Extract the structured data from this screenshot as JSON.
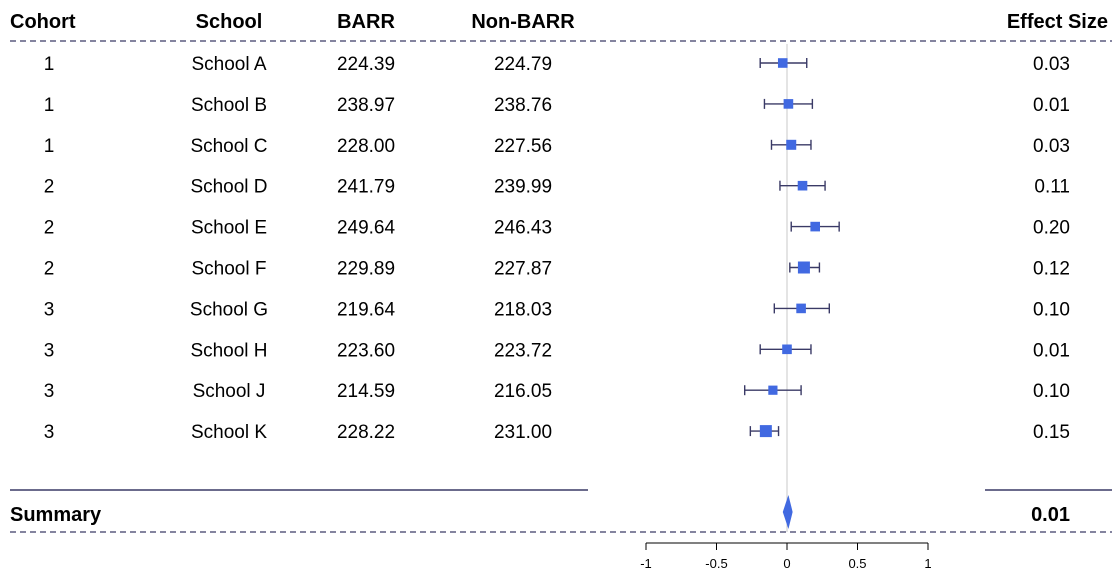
{
  "chart_data": {
    "type": "forest",
    "columns": {
      "cohort": "Cohort",
      "school": "School",
      "barr": "BARR",
      "nonbarr": "Non-BARR",
      "effect": "Effect Size"
    },
    "rows": [
      {
        "cohort": "1",
        "school": "School A",
        "barr": "224.39",
        "nonbarr": "224.79",
        "es": "0.03",
        "est": -0.03,
        "lo": -0.19,
        "hi": 0.14,
        "w": 0.45
      },
      {
        "cohort": "1",
        "school": "School B",
        "barr": "238.97",
        "nonbarr": "238.76",
        "es": "0.01",
        "est": 0.01,
        "lo": -0.16,
        "hi": 0.18,
        "w": 0.45
      },
      {
        "cohort": "1",
        "school": "School C",
        "barr": "228.00",
        "nonbarr": "227.56",
        "es": "0.03",
        "est": 0.03,
        "lo": -0.11,
        "hi": 0.17,
        "w": 0.5
      },
      {
        "cohort": "2",
        "school": "School D",
        "barr": "241.79",
        "nonbarr": "239.99",
        "es": "0.11",
        "est": 0.11,
        "lo": -0.05,
        "hi": 0.27,
        "w": 0.45
      },
      {
        "cohort": "2",
        "school": "School E",
        "barr": "249.64",
        "nonbarr": "246.43",
        "es": "0.20",
        "est": 0.2,
        "lo": 0.03,
        "hi": 0.37,
        "w": 0.45
      },
      {
        "cohort": "2",
        "school": "School F",
        "barr": "229.89",
        "nonbarr": "227.87",
        "es": "0.12",
        "est": 0.12,
        "lo": 0.02,
        "hi": 0.23,
        "w": 0.75
      },
      {
        "cohort": "3",
        "school": "School G",
        "barr": "219.64",
        "nonbarr": "218.03",
        "es": "0.10",
        "est": 0.1,
        "lo": -0.09,
        "hi": 0.3,
        "w": 0.45
      },
      {
        "cohort": "3",
        "school": "School H",
        "barr": "223.60",
        "nonbarr": "223.72",
        "es": "0.01",
        "est": 0.0,
        "lo": -0.19,
        "hi": 0.17,
        "w": 0.45
      },
      {
        "cohort": "3",
        "school": "School J",
        "barr": "214.59",
        "nonbarr": "216.05",
        "es": "0.10",
        "est": -0.1,
        "lo": -0.3,
        "hi": 0.1,
        "w": 0.4
      },
      {
        "cohort": "3",
        "school": "School K",
        "barr": "228.22",
        "nonbarr": "231.00",
        "es": "0.15",
        "est": -0.15,
        "lo": -0.26,
        "hi": -0.06,
        "w": 0.75
      }
    ],
    "summary": {
      "label": "Summary",
      "es": "0.01",
      "est": 0.01,
      "lo": -0.03,
      "hi": 0.04
    },
    "xaxis": {
      "ticks": [
        -1,
        -0.5,
        0,
        0.5,
        1
      ],
      "tick_labels": [
        "-1",
        "-0.5",
        "0",
        "0.5",
        "1"
      ],
      "xlim": [
        -1,
        1
      ]
    },
    "colors": {
      "marker": "#4169E1",
      "refline": "#C8C8C8",
      "rule": "#3A3A66",
      "axis": "#000000"
    }
  }
}
